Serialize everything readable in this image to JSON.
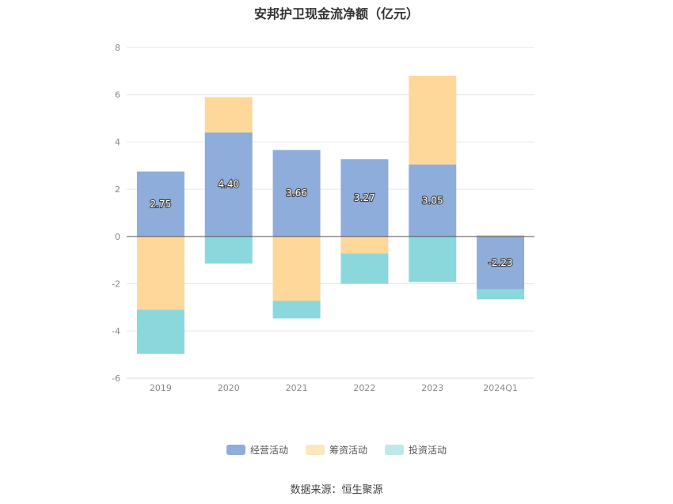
{
  "chart_data": {
    "type": "bar",
    "stacked": true,
    "title": "安邦护卫现金流净额（亿元）",
    "categories": [
      "2019",
      "2020",
      "2021",
      "2022",
      "2023",
      "2024Q1"
    ],
    "series": [
      {
        "name": "经营活动",
        "color": "#8eaddb",
        "values": [
          2.75,
          4.4,
          3.66,
          3.27,
          3.05,
          -2.23
        ],
        "labels": [
          "2.75",
          "4.40",
          "3.66",
          "3.27",
          "3.05",
          "-2.23"
        ]
      },
      {
        "name": "筹资活动",
        "color": "#fed89b",
        "values": [
          -3.1,
          1.5,
          -2.72,
          -0.72,
          3.75,
          0.06
        ]
      },
      {
        "name": "投资活动",
        "color": "#8ad8dc",
        "values": [
          -1.87,
          -1.15,
          -0.75,
          -1.28,
          -1.93,
          -0.43
        ]
      }
    ],
    "yticks": [
      "8",
      "6",
      "4",
      "2",
      "0",
      "-2",
      "-4",
      "-6"
    ],
    "ylim": [
      -6,
      8
    ],
    "grid": true,
    "legend": "bottom-center"
  },
  "footer": {
    "source": "数据来源：恒生聚源"
  }
}
